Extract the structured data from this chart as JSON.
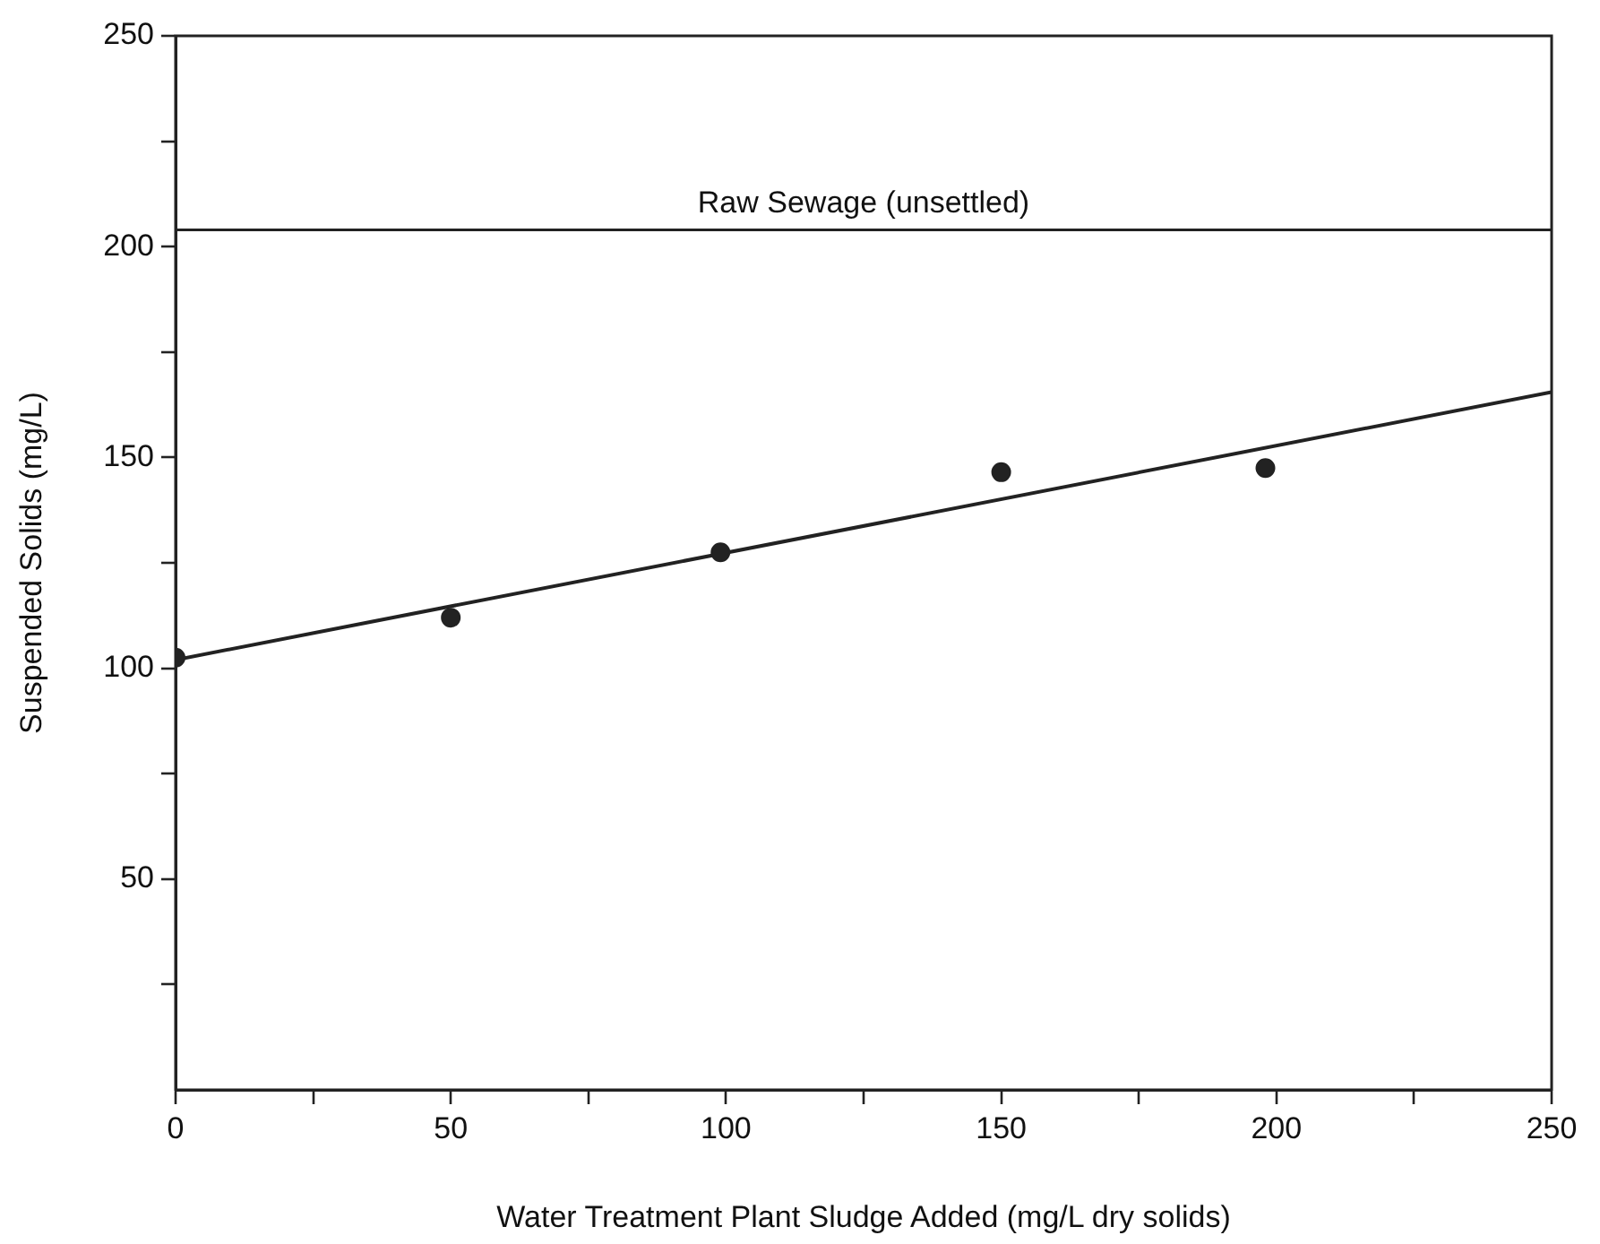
{
  "chart_data": {
    "type": "scatter",
    "xlabel": "Water Treatment Plant Sludge Added (mg/L dry solids)",
    "ylabel": "Suspended Solids (mg/L)",
    "x": [
      0,
      50,
      99,
      150,
      198
    ],
    "series": [
      {
        "color": "#222222",
        "values": [
          102.5,
          112,
          127.5,
          146.5,
          147.5
        ]
      },
      {
        "type": "line",
        "color": "#222222",
        "x": [
          0,
          250
        ],
        "values": [
          102,
          165.5
        ],
        "marker": "none"
      }
    ],
    "marker": "circle",
    "legend": false,
    "grid": false,
    "xlim": [
      0,
      250
    ],
    "xticks": [
      0,
      {
        "value": 25,
        "label": null
      },
      50,
      {
        "value": 75,
        "label": null
      },
      100,
      {
        "value": 125,
        "label": null
      },
      150,
      {
        "value": 175,
        "label": null
      },
      200,
      {
        "value": 225,
        "label": null
      },
      250
    ],
    "ylim": [
      0,
      250
    ],
    "yticks": [
      {
        "value": 25,
        "label": null
      },
      50,
      {
        "value": 75,
        "label": null
      },
      100,
      {
        "value": 125,
        "label": null
      },
      150,
      {
        "value": 175,
        "label": null
      },
      200,
      {
        "value": 225,
        "label": null
      },
      250
    ],
    "ref_lines": [
      {
        "axis": "y",
        "value": 204,
        "label": "Raw Sewage (unsettled)",
        "color": "#222222"
      }
    ]
  }
}
